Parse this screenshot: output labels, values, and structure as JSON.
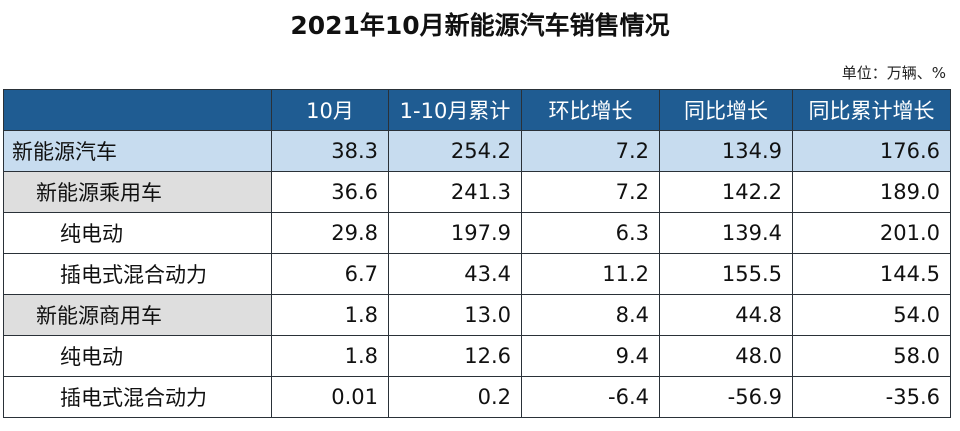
{
  "title": "2021年10月新能源汽车销售情况",
  "unit": "单位：万辆、%",
  "columns": [
    "",
    "10月",
    "1-10月累计",
    "环比增长",
    "同比增长",
    "同比累计增长"
  ],
  "rows": [
    {
      "label": "新能源汽车",
      "values": [
        "38.3",
        "254.2",
        "7.2",
        "134.9",
        "176.6"
      ]
    },
    {
      "label": "新能源乘用车",
      "values": [
        "36.6",
        "241.3",
        "7.2",
        "142.2",
        "189.0"
      ]
    },
    {
      "label": "纯电动",
      "values": [
        "29.8",
        "197.9",
        "6.3",
        "139.4",
        "201.0"
      ]
    },
    {
      "label": "插电式混合动力",
      "values": [
        "6.7",
        "43.4",
        "11.2",
        "155.5",
        "144.5"
      ]
    },
    {
      "label": "新能源商用车",
      "values": [
        "1.8",
        "13.0",
        "8.4",
        "44.8",
        "54.0"
      ]
    },
    {
      "label": "纯电动",
      "values": [
        "1.8",
        "12.6",
        "9.4",
        "48.0",
        "58.0"
      ]
    },
    {
      "label": "插电式混合动力",
      "values": [
        "0.01",
        "0.2",
        "-6.4",
        "-56.9",
        "-35.6"
      ]
    }
  ]
}
